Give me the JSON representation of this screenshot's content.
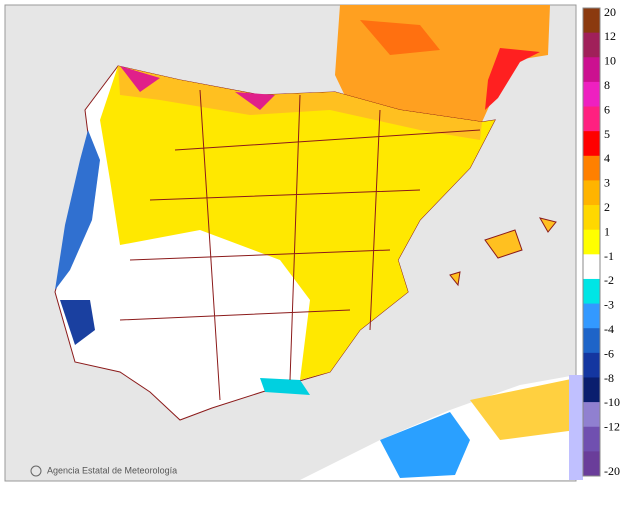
{
  "map": {
    "credit": "Agencia Estatal de Meteorología",
    "logo": "aemet",
    "legend": [
      {
        "label": 20,
        "color": "#8b3a0f"
      },
      {
        "label": 12,
        "color": "#a0205a"
      },
      {
        "label": 10,
        "color": "#cc1090"
      },
      {
        "label": 8,
        "color": "#ee20c0"
      },
      {
        "label": 6,
        "color": "#ff2080"
      },
      {
        "label": 5,
        "color": "#ff0000"
      },
      {
        "label": 4,
        "color": "#ff8000"
      },
      {
        "label": 3,
        "color": "#ffb400"
      },
      {
        "label": 2,
        "color": "#ffd800"
      },
      {
        "label": 1,
        "color": "#ffff00"
      },
      {
        "label": -1,
        "color": "#ffffff"
      },
      {
        "label": -2,
        "color": "#00e5e5"
      },
      {
        "label": -3,
        "color": "#3399ff"
      },
      {
        "label": -4,
        "color": "#1e64c8"
      },
      {
        "label": -6,
        "color": "#1436a0"
      },
      {
        "label": -8,
        "color": "#0a1e6e"
      },
      {
        "label": -10,
        "color": "#9080d0"
      },
      {
        "label": -12,
        "color": "#7050b0"
      },
      {
        "label": -20,
        "color": "#6a3d9a"
      }
    ]
  }
}
